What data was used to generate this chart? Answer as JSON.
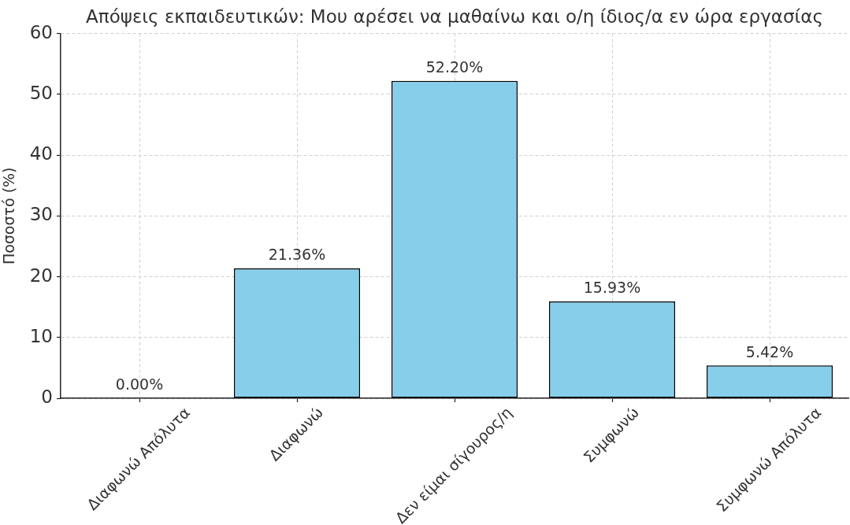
{
  "chart_data": {
    "type": "bar",
    "title": "Απόψεις εκπαιδευτικών: Μου αρέσει να μαθαίνω και ο/η ίδιος/α εν ώρα εργασίας",
    "ylabel": "Ποσοστό (%)",
    "categories": [
      "Διαφωνώ Απόλυτα",
      "Διαφωνώ",
      "Δεν είμαι σίγουρος/η",
      "Συμφωνώ",
      "Συμφωνώ Απόλυτα"
    ],
    "values": [
      0,
      21.36,
      52.2,
      15.93,
      5.42
    ],
    "value_labels": [
      "0.00%",
      "21.36%",
      "52.20%",
      "15.93%",
      "5.42%"
    ],
    "color": "#87ceeb",
    "ylim": [
      0,
      60
    ],
    "yticks": [
      0,
      10,
      20,
      30,
      40,
      50,
      60
    ],
    "grid": true
  }
}
